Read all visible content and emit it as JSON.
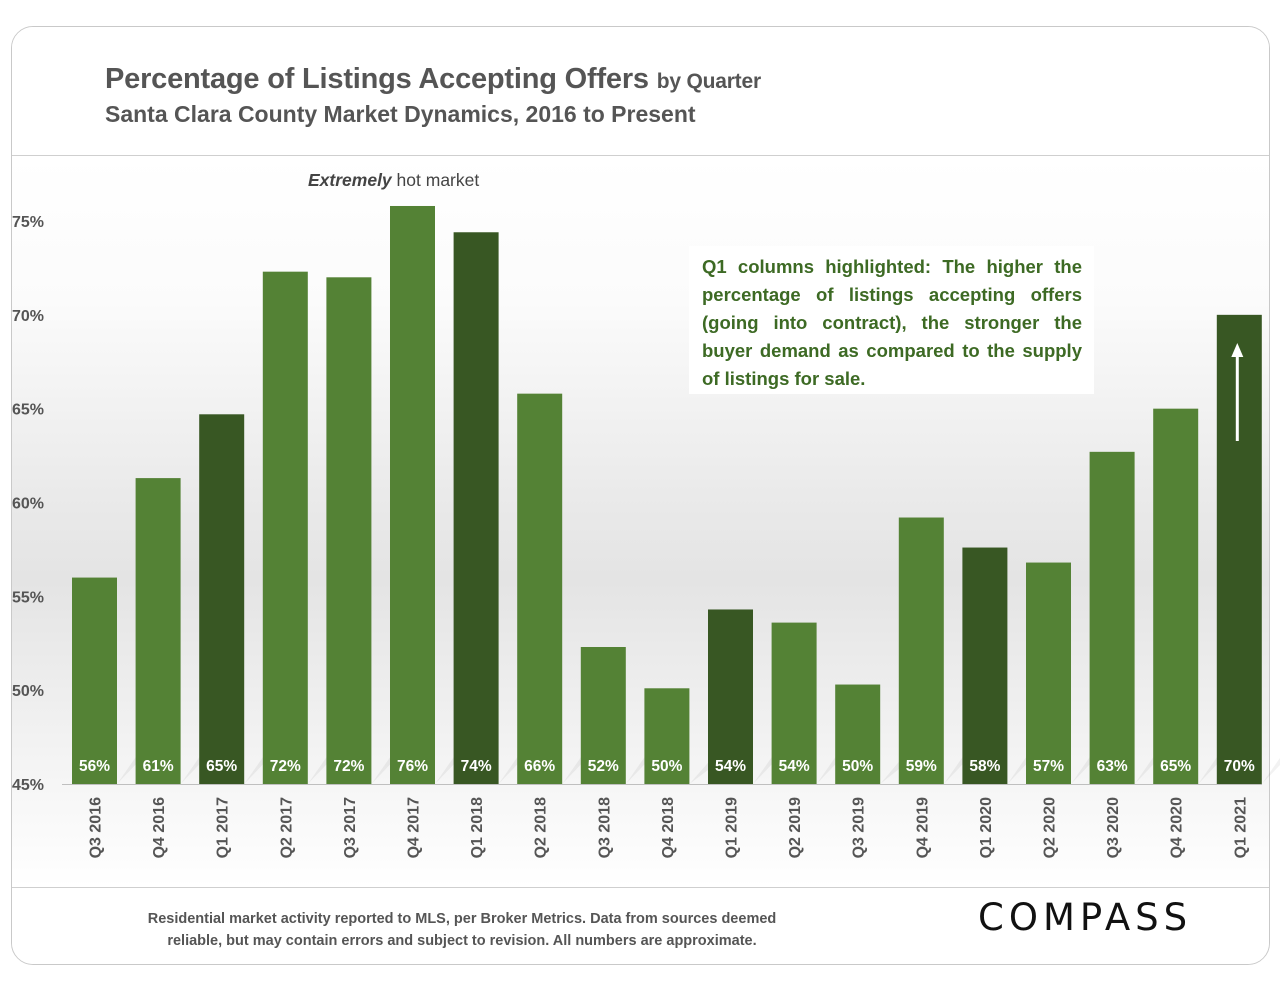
{
  "header": {
    "title": "Percentage of Listings Accepting Offers",
    "title_suffix": "by Quarter",
    "subtitle": "Santa Clara County Market Dynamics, 2016 to Present"
  },
  "annotations": {
    "hot_market_emphasis": "Extremely",
    "hot_market_rest": "hot market",
    "callout": "Q1 columns highlighted: The higher the percentage of listings accepting offers (going into contract), the stronger the buyer demand as compared to the supply of listings for sale."
  },
  "footer": {
    "note_line1": "Residential market activity reported to MLS, per Broker Metrics. Data from sources deemed",
    "note_line2": "reliable, but may contain errors and subject to revision. All numbers are approximate.",
    "logo": "COMPASS"
  },
  "colors": {
    "bar_regular": "#548235",
    "bar_q1": "#385723",
    "text_gray": "#555555",
    "annotation_green": "#3d6a24"
  },
  "chart_data": {
    "type": "bar",
    "title": "Percentage of Listings Accepting Offers by Quarter",
    "xlabel": "",
    "ylabel": "",
    "ylim": [
      45,
      75
    ],
    "y_ticks": [
      45,
      50,
      55,
      60,
      65,
      70,
      75
    ],
    "y_tick_labels": [
      "45%",
      "50%",
      "55%",
      "60%",
      "65%",
      "70%",
      "75%"
    ],
    "categories": [
      "Q3 2016",
      "Q4 2016",
      "Q1 2017",
      "Q2 2017",
      "Q3 2017",
      "Q4 2017",
      "Q1 2018",
      "Q2 2018",
      "Q3 2018",
      "Q4 2018",
      "Q1 2019",
      "Q2 2019",
      "Q3 2019",
      "Q4 2019",
      "Q1 2020",
      "Q2 2020",
      "Q3 2020",
      "Q4 2020",
      "Q1 2021"
    ],
    "values": [
      56,
      61.3,
      64.7,
      72.3,
      72,
      75.8,
      74.4,
      65.8,
      52.3,
      50.1,
      54.3,
      53.6,
      50.3,
      59.2,
      57.6,
      56.8,
      62.7,
      65,
      70
    ],
    "data_labels": [
      "56%",
      "61%",
      "65%",
      "72%",
      "72%",
      "76%",
      "74%",
      "66%",
      "52%",
      "50%",
      "54%",
      "54%",
      "50%",
      "59%",
      "58%",
      "57%",
      "63%",
      "65%",
      "70%"
    ],
    "highlighted": [
      false,
      false,
      true,
      false,
      false,
      false,
      true,
      false,
      false,
      false,
      true,
      false,
      false,
      false,
      true,
      false,
      false,
      false,
      true
    ],
    "grid": false,
    "legend": "none",
    "arrow_on": "Q1 2021"
  }
}
